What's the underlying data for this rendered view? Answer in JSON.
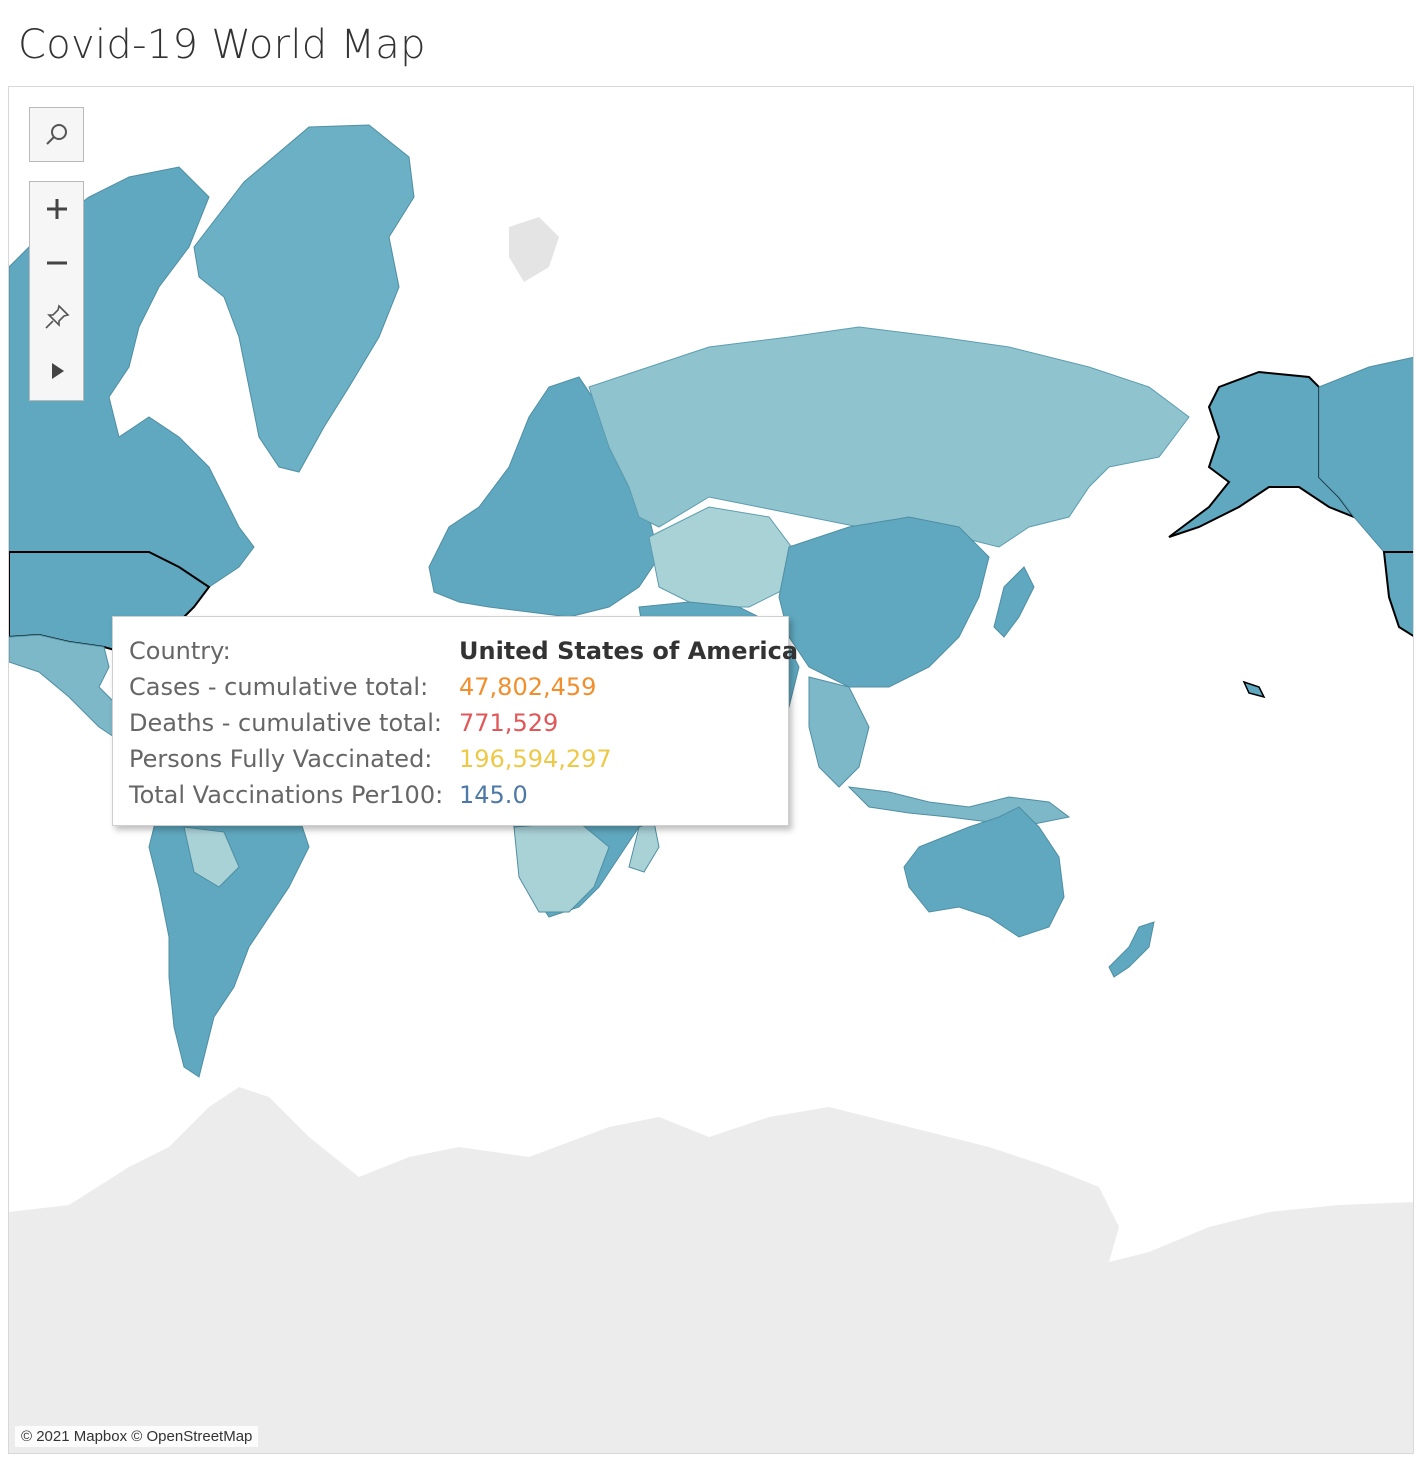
{
  "page_title": "Covid-19 World Map",
  "map": {
    "attribution": "© 2021 Mapbox © OpenStreetMap",
    "colors": {
      "ocean": "#ffffff",
      "land_dark": "#5fa8bf",
      "land_mid": "#7db8c8",
      "land_light": "#a9d2d7",
      "land_no_data": "#e4e4e4",
      "antarctica": "#ececec",
      "highlight_border": "#000000"
    },
    "selected_country": "United States of America"
  },
  "controls": {
    "search": "search-icon",
    "zoom_in": "plus-icon",
    "zoom_out": "minus-icon",
    "pin": "pin-icon",
    "expand": "play-icon"
  },
  "tooltip": {
    "rows": [
      {
        "label": "Country:",
        "value": "United States of America",
        "color": "#333333"
      },
      {
        "label": "Cases - cumulative total:",
        "value": "47,802,459",
        "color": "#f28e2b"
      },
      {
        "label": "Deaths - cumulative total:",
        "value": "771,529",
        "color": "#e15759"
      },
      {
        "label": "Persons Fully Vaccinated:",
        "value": "196,594,297",
        "color": "#edc948"
      },
      {
        "label": "Total Vaccinations Per100:",
        "value": "145.0",
        "color": "#4e79a7"
      }
    ]
  }
}
